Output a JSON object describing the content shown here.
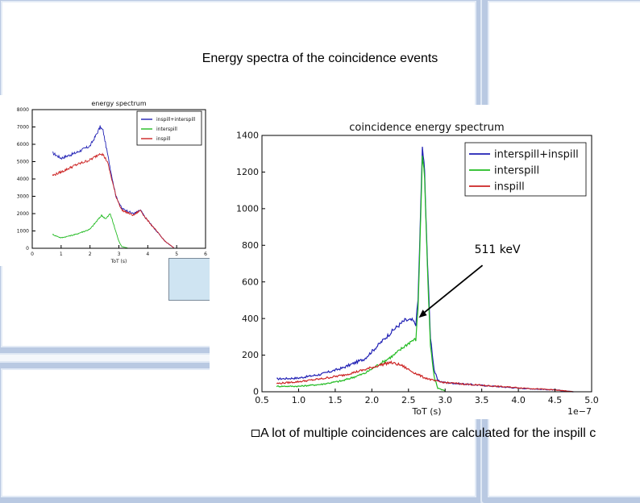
{
  "slide": {
    "title": "Energy spectra of the coincidence events",
    "caption": "A lot of multiple coincidences are calculated for  the inspill c"
  },
  "chart_data": [
    {
      "type": "line",
      "title": "energy spectrum",
      "xlabel": "ToT (s)",
      "ylabel": "",
      "xlim": [
        0,
        6
      ],
      "ylim": [
        0,
        8000
      ],
      "xticks": [
        "0",
        "1",
        "2",
        "3",
        "4",
        "5",
        "6"
      ],
      "yticks": [
        "0",
        "1000",
        "2000",
        "3000",
        "4000",
        "5000",
        "6000",
        "7000",
        "8000"
      ],
      "legend": "top-right",
      "series": [
        {
          "name": "inspill+interspill",
          "color": "#1f1fb4",
          "x": [
            0.7,
            1.0,
            1.5,
            2.0,
            2.2,
            2.35,
            2.45,
            2.6,
            2.75,
            2.9,
            3.1,
            3.5,
            3.75,
            3.9,
            4.2,
            4.6,
            4.9
          ],
          "y": [
            5500,
            5200,
            5500,
            5900,
            6500,
            7000,
            6800,
            5500,
            4200,
            3000,
            2300,
            2000,
            2200,
            1800,
            1200,
            400,
            30
          ]
        },
        {
          "name": "interspill",
          "color": "#22bb22",
          "x": [
            0.7,
            1.0,
            1.5,
            2.0,
            2.2,
            2.4,
            2.55,
            2.7,
            2.85,
            3.0,
            3.1,
            3.3
          ],
          "y": [
            800,
            600,
            800,
            1100,
            1500,
            1900,
            1700,
            2000,
            1200,
            400,
            100,
            20
          ]
        },
        {
          "name": "inspill",
          "color": "#cc2222",
          "x": [
            0.7,
            1.0,
            1.5,
            2.0,
            2.2,
            2.35,
            2.45,
            2.6,
            2.75,
            2.9,
            3.1,
            3.5,
            3.75,
            3.9,
            4.2,
            4.6,
            4.9
          ],
          "y": [
            4200,
            4400,
            4800,
            5100,
            5300,
            5500,
            5400,
            5000,
            4000,
            3000,
            2200,
            1900,
            2200,
            1800,
            1200,
            400,
            30
          ]
        }
      ]
    },
    {
      "type": "line",
      "title": "coincidence energy spectrum",
      "xlabel": "ToT (s)",
      "ylabel": "",
      "x_scale_label": "1e−7",
      "xlim": [
        0.5,
        5.0
      ],
      "ylim": [
        0,
        1400
      ],
      "xticks": [
        "0.5",
        "1.0",
        "1.5",
        "2.0",
        "2.5",
        "3.0",
        "3.5",
        "4.0",
        "4.5",
        "5.0"
      ],
      "yticks": [
        "0",
        "200",
        "400",
        "600",
        "800",
        "1000",
        "1200",
        "1400"
      ],
      "legend": "top-right",
      "annotation": "511 keV",
      "annotation_point": [
        2.63,
        400
      ],
      "series": [
        {
          "name": "interspill+inspill",
          "color": "#1f1fb4",
          "x": [
            0.7,
            1.0,
            1.3,
            1.6,
            1.9,
            2.1,
            2.3,
            2.45,
            2.55,
            2.6,
            2.63,
            2.66,
            2.69,
            2.72,
            2.76,
            2.8,
            2.85,
            2.9,
            3.0,
            3.5,
            4.0,
            4.5,
            4.75
          ],
          "y": [
            70,
            75,
            95,
            130,
            180,
            260,
            340,
            390,
            390,
            370,
            500,
            900,
            1340,
            1200,
            700,
            300,
            120,
            60,
            50,
            35,
            20,
            10,
            0
          ]
        },
        {
          "name": "interspill",
          "color": "#22bb22",
          "x": [
            0.7,
            1.0,
            1.3,
            1.6,
            1.9,
            2.1,
            2.3,
            2.45,
            2.55,
            2.6,
            2.63,
            2.66,
            2.69,
            2.72,
            2.76,
            2.8,
            2.85,
            2.9,
            3.0
          ],
          "y": [
            30,
            30,
            40,
            60,
            100,
            150,
            200,
            250,
            280,
            285,
            450,
            850,
            1300,
            1170,
            650,
            250,
            80,
            20,
            5
          ]
        },
        {
          "name": "inspill",
          "color": "#cc2222",
          "x": [
            0.7,
            1.0,
            1.3,
            1.6,
            1.9,
            2.1,
            2.25,
            2.4,
            2.55,
            2.7,
            2.85,
            3.0,
            3.5,
            4.0,
            4.5,
            4.75
          ],
          "y": [
            45,
            55,
            70,
            90,
            120,
            145,
            160,
            145,
            110,
            80,
            60,
            50,
            35,
            22,
            10,
            0
          ]
        }
      ]
    }
  ]
}
